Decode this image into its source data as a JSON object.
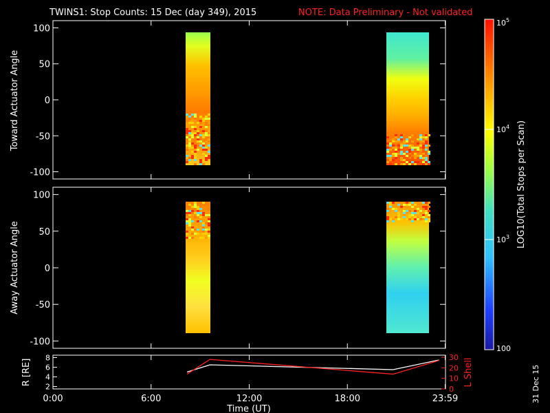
{
  "header": {
    "title": "TWINS1: Stop Counts: 15 Dec (day 349), 2015",
    "note": "NOTE: Data Preliminary - Not validated"
  },
  "footer": {
    "date_stamp": "31 Dec 15"
  },
  "chart_data": [
    {
      "type": "heatmap",
      "panel": "toward",
      "ylabel": "Toward Actuator Angle",
      "ylim": [
        -110,
        110
      ],
      "yticks": [
        "100",
        "50",
        "0",
        "-50",
        "-100"
      ],
      "xlim_hours": [
        0,
        24
      ],
      "coverage_hours": [
        [
          8.2,
          9.6
        ],
        [
          20.8,
          23.6
        ]
      ]
    },
    {
      "type": "heatmap",
      "panel": "away",
      "ylabel": "Away Actuator Angle",
      "ylim": [
        -110,
        110
      ],
      "yticks": [
        "100",
        "50",
        "0",
        "-50",
        "-100"
      ],
      "xlim_hours": [
        0,
        24
      ],
      "coverage_hours": [
        [
          8.2,
          9.6
        ],
        [
          20.8,
          23.6
        ]
      ]
    },
    {
      "type": "line",
      "panel": "ephemeris",
      "xlabel": "Time (UT)",
      "xticks": [
        "0:00",
        "6:00",
        "12:00",
        "18:00",
        "23:59"
      ],
      "left_axis": {
        "label": "R [RE]",
        "range": [
          1.5,
          8.5
        ],
        "ticks": [
          "8",
          "6",
          "4",
          "2"
        ]
      },
      "right_axis": {
        "label": "L Shell",
        "range": [
          0,
          32
        ],
        "ticks": [
          "30",
          "20",
          "10",
          "0"
        ]
      },
      "series": [
        {
          "axis": "left",
          "color": "#ffffff",
          "x": [
            8.2,
            9.6,
            20.8,
            23.6
          ],
          "y": [
            5.0,
            6.5,
            5.5,
            7.5
          ]
        },
        {
          "axis": "right",
          "color": "#ff2020",
          "x": [
            8.2,
            9.6,
            20.8,
            23.6
          ],
          "y": [
            14,
            28,
            14,
            27
          ]
        }
      ]
    },
    {
      "type": "colorbar",
      "label": "LOG10(Total Stops per Scan)",
      "scale": "log",
      "range": [
        100,
        100000
      ],
      "ticks": [
        "10^5",
        "10^4",
        "10^3",
        "100"
      ]
    }
  ]
}
